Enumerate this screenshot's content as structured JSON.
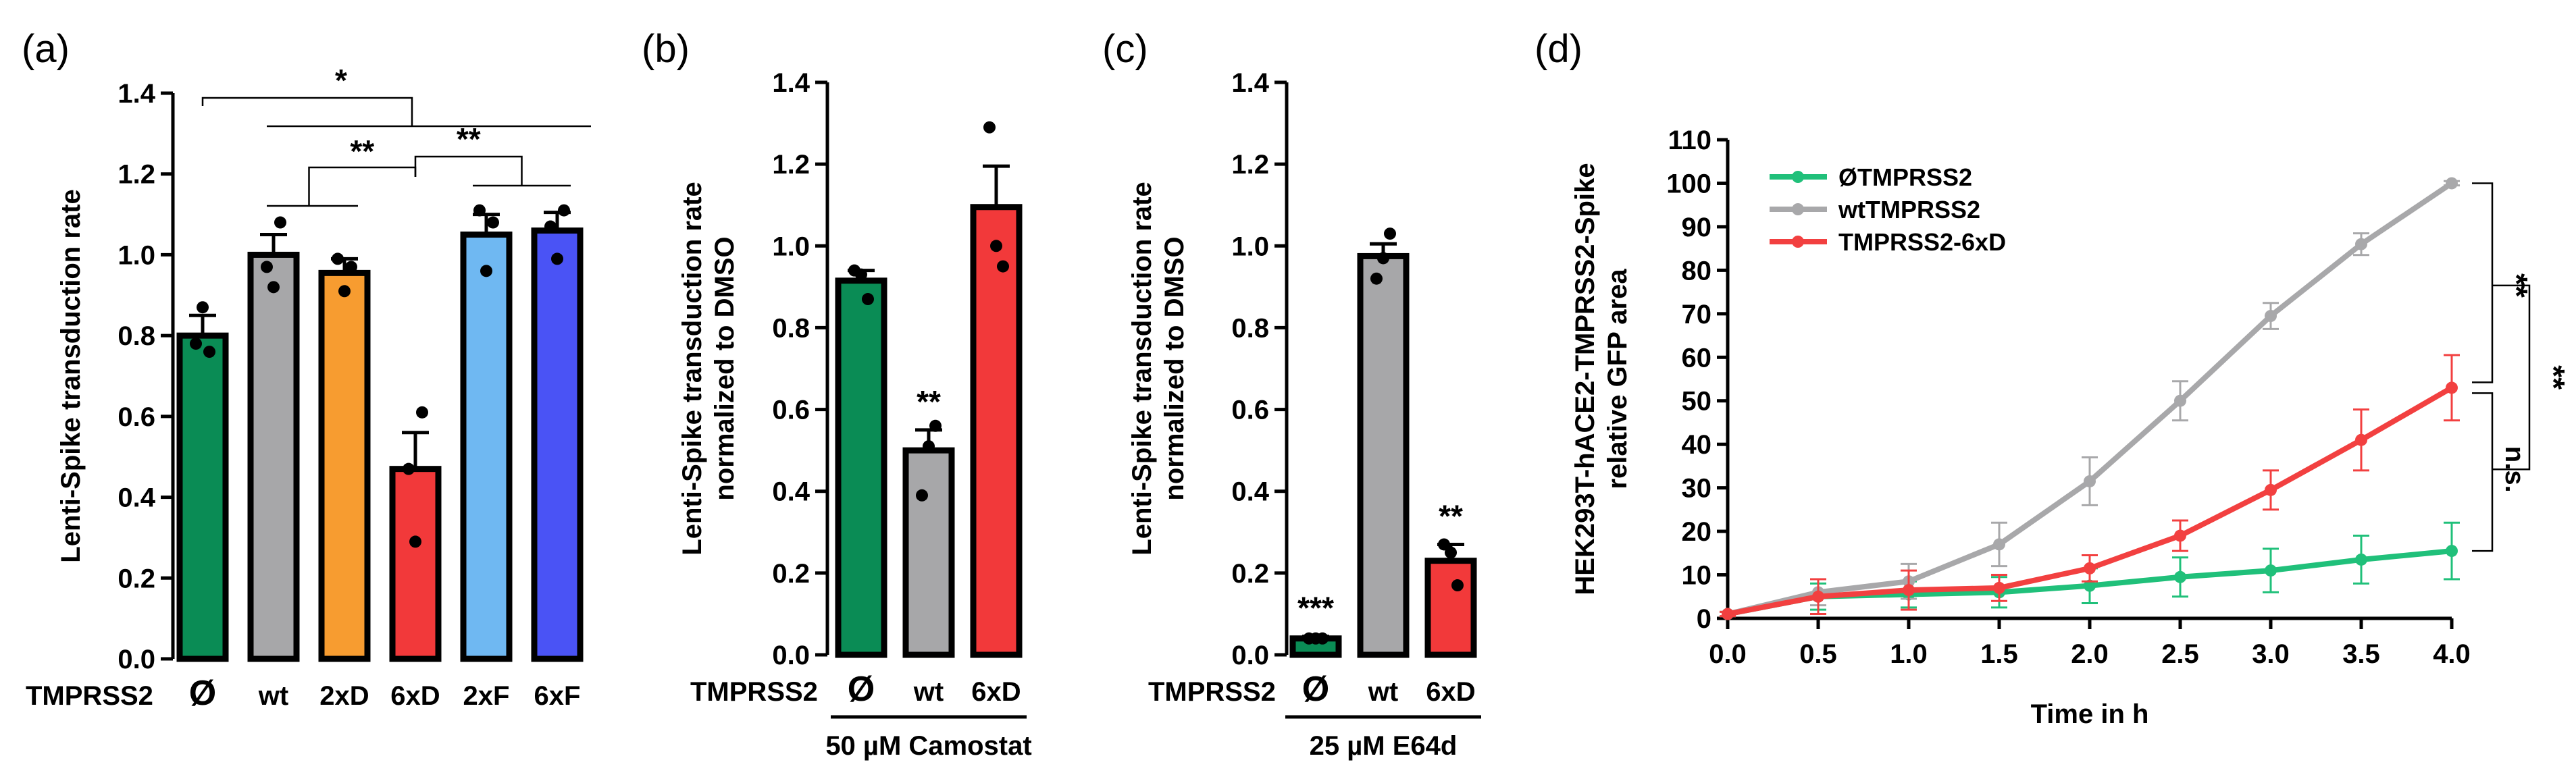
{
  "panels": [
    "(a)",
    "(b)",
    "(c)",
    "(d)"
  ],
  "chart_data": [
    {
      "panel": "(a)",
      "type": "bar",
      "ylabel": "Lenti-Spike transduction rate",
      "xlabel": "",
      "ylim": [
        0,
        1.4
      ],
      "yticks": [
        "0.0",
        "0.2",
        "0.4",
        "0.6",
        "0.8",
        "1.0",
        "1.2",
        "1.4"
      ],
      "row_label": "TMPRSS2",
      "categories": [
        "Ø",
        "wt",
        "2xD",
        "6xD",
        "2xF",
        "6xF"
      ],
      "values": [
        0.8,
        1.0,
        0.955,
        0.47,
        1.05,
        1.06
      ],
      "errors": [
        0.05,
        0.05,
        0.035,
        0.09,
        0.05,
        0.045
      ],
      "points": [
        [
          0.78,
          0.87,
          0.76
        ],
        [
          1.08,
          0.92,
          0.97
        ],
        [
          0.99,
          0.91,
          0.97
        ],
        [
          0.61,
          0.29,
          0.47
        ],
        [
          1.11,
          0.96,
          1.08
        ],
        [
          1.11,
          0.99,
          1.07
        ]
      ],
      "colors": [
        "#0a8c55",
        "#a7a7a9",
        "#f79c30",
        "#f2393a",
        "#6fb8f2",
        "#4a53f5"
      ],
      "significance": [
        "*",
        "**",
        "**"
      ]
    },
    {
      "panel": "(b)",
      "type": "bar",
      "ylabel": "Lenti-Spike transduction rate\nnormalized to DMSO",
      "xlabel": "50 µM Camostat",
      "ylim": [
        0,
        1.4
      ],
      "yticks": [
        "0.0",
        "0.2",
        "0.4",
        "0.6",
        "0.8",
        "1.0",
        "1.2",
        "1.4"
      ],
      "row_label": "TMPRSS2",
      "categories": [
        "Ø",
        "wt",
        "6xD"
      ],
      "values": [
        0.915,
        0.5,
        1.095
      ],
      "errors": [
        0.025,
        0.05,
        0.1
      ],
      "points": [
        [
          0.94,
          0.93,
          0.87
        ],
        [
          0.56,
          0.51,
          0.39
        ],
        [
          1.29,
          1.0,
          0.95
        ]
      ],
      "colors": [
        "#0a8c55",
        "#a7a7a9",
        "#f2393a"
      ],
      "annotations": [
        "",
        "**",
        ""
      ]
    },
    {
      "panel": "(c)",
      "type": "bar",
      "ylabel": "Lenti-Spike transduction rate\nnormalized to DMSO",
      "xlabel": "25 µM E64d",
      "ylim": [
        0,
        1.4
      ],
      "yticks": [
        "0.0",
        "0.2",
        "0.4",
        "0.6",
        "0.8",
        "1.0",
        "1.2",
        "1.4"
      ],
      "row_label": "TMPRSS2",
      "categories": [
        "Ø",
        "wt",
        "6xD"
      ],
      "values": [
        0.04,
        0.975,
        0.23
      ],
      "errors": [
        0.005,
        0.03,
        0.04
      ],
      "points": [
        [
          0.04,
          0.04,
          0.04
        ],
        [
          1.03,
          0.97,
          0.92
        ],
        [
          0.27,
          0.25,
          0.17
        ]
      ],
      "colors": [
        "#0a8c55",
        "#a7a7a9",
        "#f2393a"
      ],
      "annotations": [
        "***",
        "",
        "**"
      ]
    },
    {
      "panel": "(d)",
      "type": "line",
      "xlabel": "Time in h",
      "ylabel": "HEK293T-hACE2-TMPRSS2-Spike\nrelative GFP area",
      "xlim": [
        0,
        4
      ],
      "ylim": [
        0,
        110
      ],
      "xticks": [
        "0.0",
        "0.5",
        "1.0",
        "1.5",
        "2.0",
        "2.5",
        "3.0",
        "3.5",
        "4.0"
      ],
      "yticks": [
        "0",
        "10",
        "20",
        "30",
        "40",
        "50",
        "60",
        "70",
        "80",
        "90",
        "100",
        "110"
      ],
      "x": [
        0,
        0.5,
        1.0,
        1.5,
        2.0,
        2.5,
        3.0,
        3.5,
        4.0
      ],
      "series": [
        {
          "name": "ØTMPRSS2",
          "color": "#20c07a",
          "values": [
            1,
            5,
            5.5,
            6,
            7.5,
            9.5,
            11,
            13.5,
            15.5
          ],
          "errors": [
            0.5,
            3,
            3,
            3.5,
            4,
            4.5,
            5,
            5.5,
            6.5
          ]
        },
        {
          "name": "wtTMPRSS2",
          "color": "#a8a8aa",
          "values": [
            1,
            6,
            8.5,
            17,
            31.5,
            50,
            69.5,
            86,
            100
          ],
          "errors": [
            0.5,
            3,
            4,
            5,
            5.5,
            4.5,
            3,
            2.5,
            0.5
          ]
        },
        {
          "name": "TMPRSS2-6xD",
          "color": "#f24040",
          "values": [
            1,
            5,
            6.5,
            7,
            11.5,
            19,
            29.5,
            41,
            53
          ],
          "errors": [
            0.5,
            4,
            4.5,
            3,
            3,
            3.5,
            4.5,
            7,
            7.5
          ]
        }
      ],
      "significance": [
        "**",
        "n.s.",
        "**"
      ]
    }
  ]
}
